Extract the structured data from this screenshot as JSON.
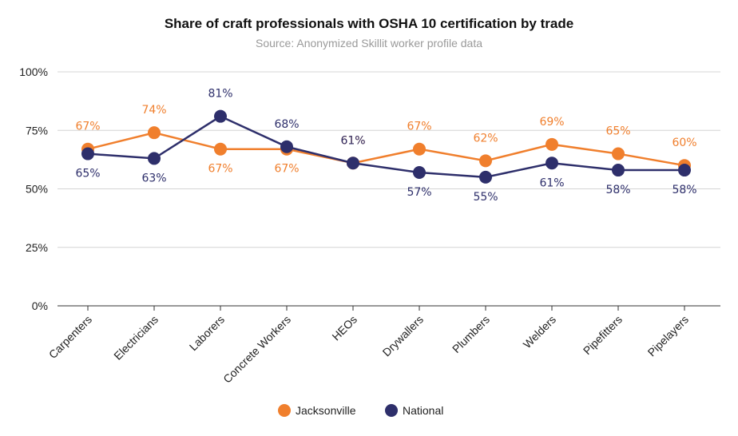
{
  "chart_data": {
    "type": "line",
    "title": "Share of craft professionals with OSHA 10 certification by trade",
    "subtitle": "Source: Anonymized Skillit worker profile data",
    "xlabel": "",
    "ylabel": "",
    "ylim": [
      0,
      100
    ],
    "yticks": [
      "0%",
      "25%",
      "50%",
      "75%",
      "100%"
    ],
    "grid": true,
    "legend_position": "bottom",
    "categories": [
      "Carpenters",
      "Electricians",
      "Laborers",
      "Concrete Workers",
      "HEOs",
      "Drywallers",
      "Plumbers",
      "Welders",
      "Pipefitters",
      "Pipelayers"
    ],
    "series": [
      {
        "name": "Jacksonville",
        "color": "#F07F2D",
        "values": [
          67,
          74,
          67,
          67,
          61,
          67,
          62,
          69,
          65,
          60
        ],
        "labels": [
          "67%",
          "74%",
          "67%",
          "67%",
          "61%",
          "67%",
          "62%",
          "69%",
          "65%",
          "60%"
        ]
      },
      {
        "name": "National",
        "color": "#2E2F6B",
        "values": [
          65,
          63,
          81,
          68,
          61,
          57,
          55,
          61,
          58,
          58
        ],
        "labels": [
          "65%",
          "63%",
          "81%",
          "68%",
          "61%",
          "57%",
          "55%",
          "61%",
          "58%",
          "58%"
        ]
      }
    ]
  }
}
